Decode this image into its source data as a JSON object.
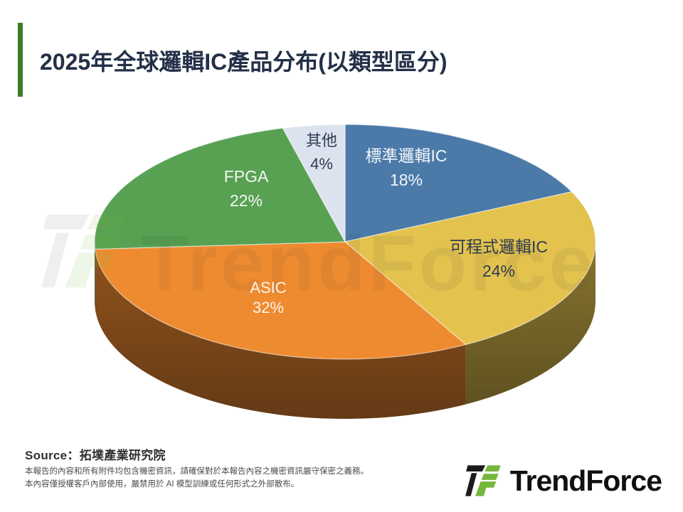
{
  "title": "2025年全球邏輯IC產品分布(以類型區分)",
  "watermark": {
    "text": "TrendForce"
  },
  "chart_data": {
    "type": "pie",
    "style": "3d",
    "title": "2025年全球邏輯IC產品分布(以類型區分)",
    "unit": "%",
    "start_angle_deg": 0,
    "direction": "clockwise",
    "legend": "labels-on-slices",
    "slices": [
      {
        "label": "標準邏輯IC",
        "value": 18,
        "pct_label": "18%",
        "color": "#4B7AA9",
        "text_color": "#f2f6fa"
      },
      {
        "label": "可程式邏輯IC",
        "value": 24,
        "pct_label": "24%",
        "color": "#E3C24E",
        "text_color": "#2e3b52"
      },
      {
        "label": "ASIC",
        "value": 32,
        "pct_label": "32%",
        "color": "#EE8B31",
        "text_color": "#fdf5ec"
      },
      {
        "label": "FPGA",
        "value": 22,
        "pct_label": "22%",
        "color": "#58A152",
        "text_color": "#f2f7f1"
      },
      {
        "label": "其他",
        "value": 4,
        "pct_label": "4%",
        "color": "#DCE3EE",
        "text_color": "#2e3b52"
      }
    ]
  },
  "footer": {
    "source_label": "Source：拓墣產業研究院",
    "disclaimer_line1": "本報告的內容和所有附件均包含機密資訊，請確保對於本報告內容之機密資訊嚴守保密之義務。",
    "disclaimer_line2": "本內容僅授權客戶內部使用，嚴禁用於 AI 模型訓練或任何形式之外部散布。",
    "logo_text": "TrendForce"
  },
  "colors": {
    "accent_bar": "#3E7D23",
    "title_text": "#233047",
    "logo_black": "#1b1b1b",
    "logo_green": "#74b73b"
  }
}
